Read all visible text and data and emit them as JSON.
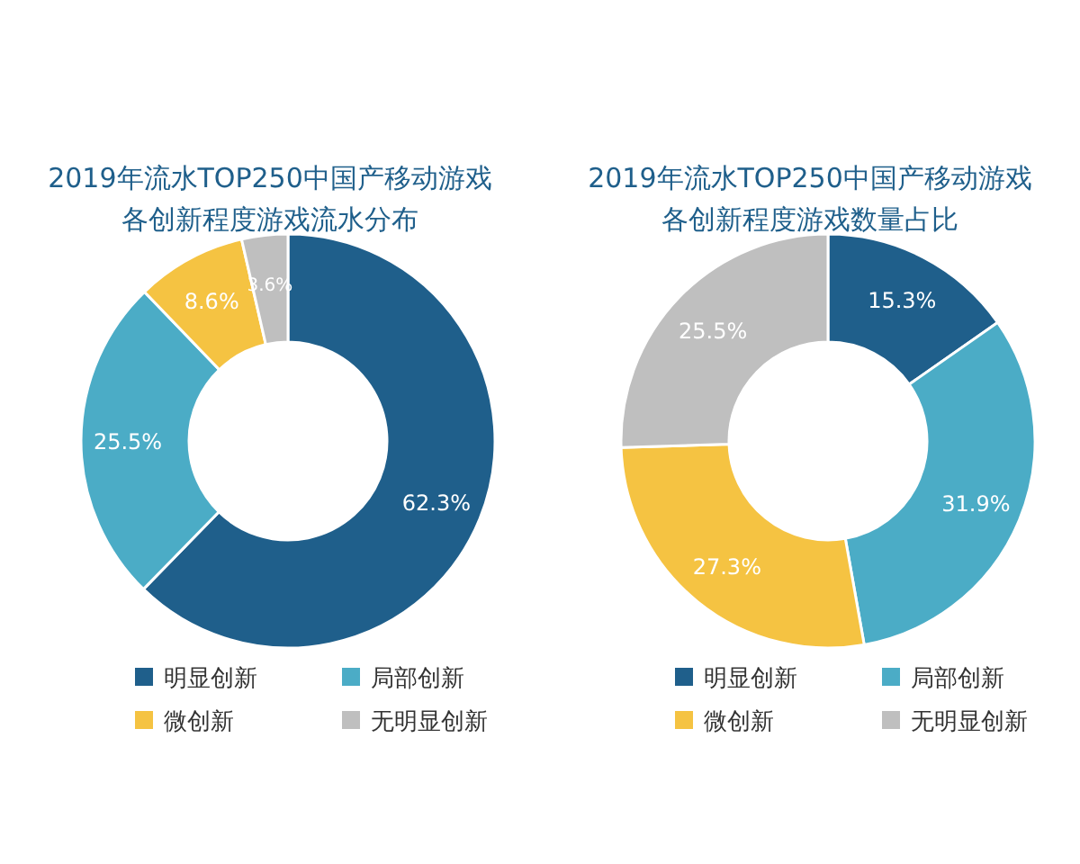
{
  "chart_data": [
    {
      "type": "donut",
      "title": "2019年流水TOP250中国产移动游戏各创新程度游戏流水分布",
      "categories": [
        "明显创新",
        "局部创新",
        "微创新",
        "无明显创新"
      ],
      "values": [
        62.3,
        25.5,
        8.6,
        3.6
      ],
      "colors": [
        "#1f5f8b",
        "#4bacc6",
        "#f5c342",
        "#bfbfbf"
      ],
      "value_labels": [
        "62.3%",
        "25.5%",
        "8.6%",
        "3.6%"
      ],
      "legend": "bottom"
    },
    {
      "type": "donut",
      "title": "2019年流水TOP250中国产移动游戏各创新程度游戏数量占比",
      "categories": [
        "明显创新",
        "局部创新",
        "微创新",
        "无明显创新"
      ],
      "values": [
        15.3,
        31.9,
        27.3,
        25.5
      ],
      "colors": [
        "#1f5f8b",
        "#4bacc6",
        "#f5c342",
        "#bfbfbf"
      ],
      "value_labels": [
        "15.3%",
        "31.9%",
        "27.3%",
        "25.5%"
      ],
      "legend": "bottom"
    }
  ]
}
